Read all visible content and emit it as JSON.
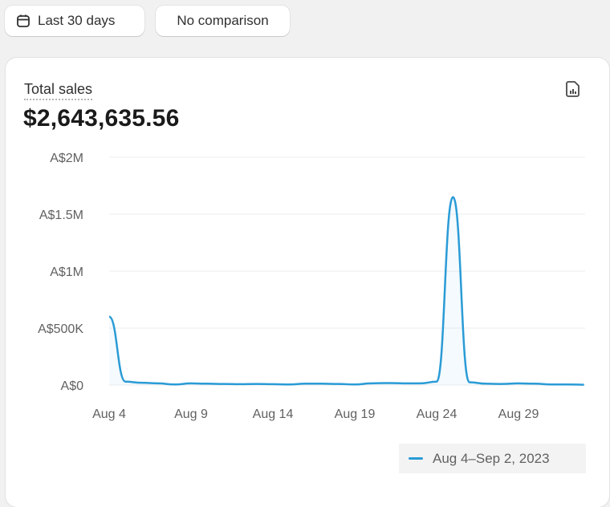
{
  "toolbar": {
    "date_range_label": "Last 30 days",
    "date_range_icon": "calendar-icon",
    "comparison_label": "No comparison"
  },
  "card": {
    "title": "Total sales",
    "total": "$2,643,635.56",
    "report_icon": "report-document-icon"
  },
  "chart_data": {
    "type": "line",
    "y_ticks": [
      "A$0",
      "A$500K",
      "A$1M",
      "A$1.5M",
      "A$2M"
    ],
    "y_tick_values": [
      0,
      500000,
      1000000,
      1500000,
      2000000
    ],
    "ylim": [
      0,
      2000000
    ],
    "x_ticks": [
      "Aug 4",
      "Aug 9",
      "Aug 14",
      "Aug 19",
      "Aug 24",
      "Aug 29"
    ],
    "grid": true,
    "legend_position": "bottom-right",
    "line_color": "#2a9bd6",
    "series": [
      {
        "name": "Aug 4–Sep 2, 2023",
        "x": [
          "Aug 4",
          "Aug 5",
          "Aug 6",
          "Aug 7",
          "Aug 8",
          "Aug 9",
          "Aug 10",
          "Aug 11",
          "Aug 12",
          "Aug 13",
          "Aug 14",
          "Aug 15",
          "Aug 16",
          "Aug 17",
          "Aug 18",
          "Aug 19",
          "Aug 20",
          "Aug 21",
          "Aug 22",
          "Aug 23",
          "Aug 24",
          "Aug 25",
          "Aug 26",
          "Aug 27",
          "Aug 28",
          "Aug 29",
          "Aug 30",
          "Aug 31",
          "Sep 1",
          "Sep 2"
        ],
        "values": [
          600000,
          30000,
          20000,
          15000,
          5000,
          15000,
          12000,
          10000,
          8000,
          10000,
          8000,
          5000,
          12000,
          12000,
          10000,
          5000,
          15000,
          18000,
          15000,
          15000,
          30000,
          1650000,
          25000,
          12000,
          10000,
          15000,
          12000,
          5000,
          5000,
          3000
        ]
      }
    ]
  }
}
